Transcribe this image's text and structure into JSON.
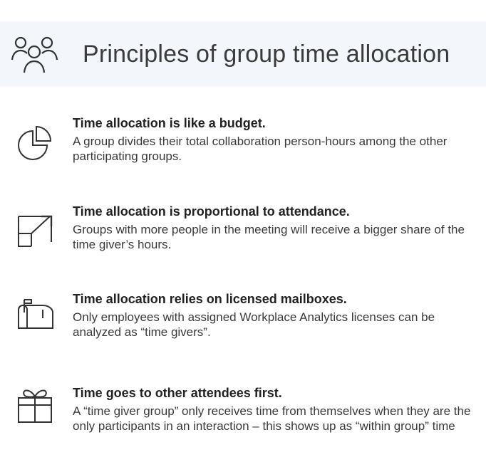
{
  "header": {
    "title": "Principles of group time allocation",
    "icon": "people-group-icon"
  },
  "principles": [
    {
      "icon": "pie-chart-icon",
      "heading": "Time allocation is like a budget.",
      "body": "A group divides their total collaboration person-hours among the other participating groups."
    },
    {
      "icon": "resize-expand-icon",
      "heading": "Time allocation is proportional to attendance.",
      "body": "Groups with more people in the meeting will receive a bigger share of the time giver’s hours."
    },
    {
      "icon": "mailbox-icon",
      "heading": "Time allocation relies on licensed mailboxes.",
      "body": "Only employees with assigned Workplace Analytics licenses can be analyzed as “time givers”."
    },
    {
      "icon": "gift-icon",
      "heading": "Time goes to other attendees first.",
      "body": "A “time giver group” only receives time from themselves when they are the only participants in an interaction – this shows up as “within group” time"
    }
  ]
}
